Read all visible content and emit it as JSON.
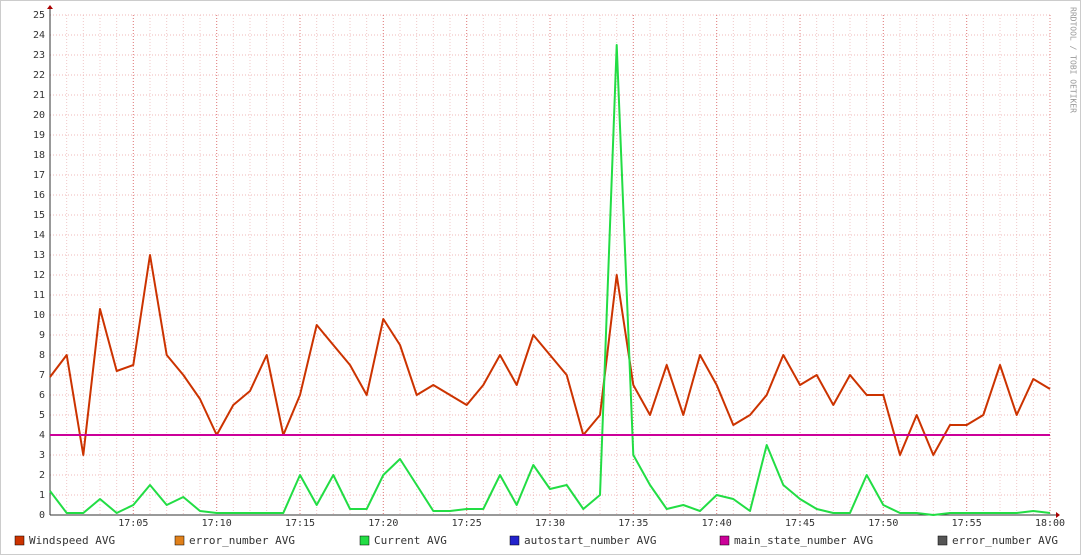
{
  "chart_data": {
    "type": "line",
    "watermark": "RRDTOOL / TOBI OETIKER",
    "x": [
      "17:00",
      "17:01",
      "17:02",
      "17:03",
      "17:04",
      "17:05",
      "17:06",
      "17:07",
      "17:08",
      "17:09",
      "17:10",
      "17:11",
      "17:12",
      "17:13",
      "17:14",
      "17:15",
      "17:16",
      "17:17",
      "17:18",
      "17:19",
      "17:20",
      "17:21",
      "17:22",
      "17:23",
      "17:24",
      "17:25",
      "17:26",
      "17:27",
      "17:28",
      "17:29",
      "17:30",
      "17:31",
      "17:32",
      "17:33",
      "17:34",
      "17:35",
      "17:36",
      "17:37",
      "17:38",
      "17:39",
      "17:40",
      "17:41",
      "17:42",
      "17:43",
      "17:44",
      "17:45",
      "17:46",
      "17:47",
      "17:48",
      "17:49",
      "17:50",
      "17:51",
      "17:52",
      "17:53",
      "17:54",
      "17:55",
      "17:56",
      "17:57",
      "17:58",
      "17:59",
      "18:00"
    ],
    "xticks": [
      "17:05",
      "17:10",
      "17:15",
      "17:20",
      "17:25",
      "17:30",
      "17:35",
      "17:40",
      "17:45",
      "17:50",
      "17:55",
      "18:00"
    ],
    "ylim": [
      0,
      25
    ],
    "yticks": [
      0,
      1,
      2,
      3,
      4,
      5,
      6,
      7,
      8,
      9,
      10,
      11,
      12,
      13,
      14,
      15,
      16,
      17,
      18,
      19,
      20,
      21,
      22,
      23,
      24,
      25
    ],
    "grid": true,
    "series": [
      {
        "name": "Windspeed AVG",
        "color": "#cc3300",
        "values": [
          6.9,
          8,
          3,
          10.3,
          7.2,
          7.5,
          13,
          8,
          7,
          5.8,
          4,
          5.5,
          6.2,
          8,
          4,
          6,
          9.5,
          8.5,
          7.5,
          6,
          9.8,
          8.5,
          6,
          6.5,
          6,
          5.5,
          6.5,
          8,
          6.5,
          9,
          8,
          7,
          4,
          5,
          12,
          6.5,
          5,
          7.5,
          5,
          8,
          6.5,
          4.5,
          5,
          6,
          8,
          6.5,
          7,
          5.5,
          7,
          6,
          6,
          3,
          5,
          3,
          4.5,
          4.5,
          5,
          7.5,
          5,
          6.8,
          6.3
        ]
      },
      {
        "name": "error_number AVG",
        "color": "#e0801a",
        "values": [
          null,
          null,
          null,
          null,
          null,
          null,
          null,
          null,
          null,
          null,
          null,
          null,
          null,
          null,
          null,
          null,
          null,
          null,
          null,
          null,
          null,
          null,
          null,
          null,
          null,
          null,
          null,
          null,
          null,
          null,
          null,
          null,
          null,
          null,
          null,
          null,
          null,
          null,
          null,
          null,
          null,
          null,
          null,
          null,
          null,
          null,
          null,
          null,
          null,
          null,
          null,
          null,
          null,
          null,
          null,
          null,
          null,
          null,
          null,
          null,
          null
        ]
      },
      {
        "name": "Current AVG",
        "color": "#22dd44",
        "values": [
          1.2,
          0.1,
          0.1,
          0.8,
          0.1,
          0.5,
          1.5,
          0.5,
          0.9,
          0.2,
          0.1,
          0.1,
          0.1,
          0.1,
          0.1,
          2,
          0.5,
          2,
          0.3,
          0.3,
          2,
          2.8,
          1.5,
          0.2,
          0.2,
          0.3,
          0.3,
          2,
          0.5,
          2.5,
          1.3,
          1.5,
          0.3,
          1,
          23.5,
          3,
          1.5,
          0.3,
          0.5,
          0.2,
          1,
          0.8,
          0.2,
          3.5,
          1.5,
          0.8,
          0.3,
          0.1,
          0.1,
          2,
          0.5,
          0.1,
          0.1,
          0,
          0.1,
          0.1,
          0.1,
          0.1,
          0.1,
          0.2,
          0.1
        ]
      },
      {
        "name": "autostart_number AVG",
        "color": "#2222cc",
        "values": [
          null,
          null,
          null,
          null,
          null,
          null,
          null,
          null,
          null,
          null,
          null,
          null,
          null,
          null,
          null,
          null,
          null,
          null,
          null,
          null,
          null,
          null,
          null,
          null,
          null,
          null,
          null,
          null,
          null,
          null,
          null,
          null,
          null,
          null,
          null,
          null,
          null,
          null,
          null,
          null,
          null,
          null,
          null,
          null,
          null,
          null,
          null,
          null,
          null,
          null,
          null,
          null,
          null,
          null,
          null,
          null,
          null,
          null,
          null,
          null,
          null
        ]
      },
      {
        "name": "main_state_number AVG",
        "color": "#cc0099",
        "values": [
          4,
          4,
          4,
          4,
          4,
          4,
          4,
          4,
          4,
          4,
          4,
          4,
          4,
          4,
          4,
          4,
          4,
          4,
          4,
          4,
          4,
          4,
          4,
          4,
          4,
          4,
          4,
          4,
          4,
          4,
          4,
          4,
          4,
          4,
          4,
          4,
          4,
          4,
          4,
          4,
          4,
          4,
          4,
          4,
          4,
          4,
          4,
          4,
          4,
          4,
          4,
          4,
          4,
          4,
          4,
          4,
          4,
          4,
          4,
          4,
          4
        ]
      },
      {
        "name": "error_number AVG",
        "color": "#555555",
        "values": [
          null,
          null,
          null,
          null,
          null,
          null,
          null,
          null,
          null,
          null,
          null,
          null,
          null,
          null,
          null,
          null,
          null,
          null,
          null,
          null,
          null,
          null,
          null,
          null,
          null,
          null,
          null,
          null,
          null,
          null,
          null,
          null,
          null,
          null,
          null,
          null,
          null,
          null,
          null,
          null,
          null,
          null,
          null,
          null,
          null,
          null,
          null,
          null,
          null,
          null,
          null,
          null,
          null,
          null,
          null,
          null,
          null,
          null,
          null,
          null,
          null
        ]
      }
    ]
  }
}
